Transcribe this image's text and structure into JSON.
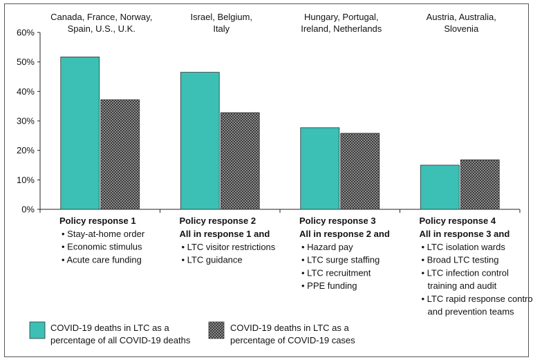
{
  "colors": {
    "series1": "#3cbfb5",
    "series2_fill": "#3a3a3a",
    "series2_dot": "#f0f0f0",
    "axis": "#222222"
  },
  "chart_data": {
    "type": "bar",
    "ylim": [
      0,
      60
    ],
    "yticks": [
      "0%",
      "10%",
      "20%",
      "30%",
      "40%",
      "50%",
      "60%"
    ],
    "grid": false,
    "categories": [
      {
        "label_lines": [
          "Canada, France, Norway,",
          "Spain, U.S., U.K."
        ]
      },
      {
        "label_lines": [
          "Israel, Belgium,",
          "Italy"
        ]
      },
      {
        "label_lines": [
          "Hungary, Portugal,",
          "Ireland, Netherlands"
        ]
      },
      {
        "label_lines": [
          "Austria, Australia,",
          "Slovenia"
        ]
      }
    ],
    "series": [
      {
        "name": "COVID-19 deaths in LTC as a percentage of all COVID-19 deaths",
        "values": [
          51.7,
          46.5,
          27.7,
          15.0
        ]
      },
      {
        "name": "COVID-19 deaths in LTC as a percentage of COVID-19 cases",
        "values": [
          37.2,
          32.8,
          25.8,
          16.8
        ]
      }
    ],
    "policies": [
      {
        "title": [
          "Policy response 1"
        ],
        "items": [
          [
            "Stay-at-home order"
          ],
          [
            "Economic stimulus"
          ],
          [
            "Acute care funding"
          ]
        ]
      },
      {
        "title": [
          "Policy response 2",
          "All in response 1 and"
        ],
        "items": [
          [
            "LTC visitor restrictions"
          ],
          [
            "LTC guidance"
          ]
        ]
      },
      {
        "title": [
          "Policy response 3",
          "All in response 2 and"
        ],
        "items": [
          [
            "Hazard pay"
          ],
          [
            "LTC surge staffing"
          ],
          [
            "LTC recruitment"
          ],
          [
            "PPE funding"
          ]
        ]
      },
      {
        "title": [
          "Policy response 4",
          "All in response 3 and"
        ],
        "items": [
          [
            "LTC isolation wards"
          ],
          [
            "Broad LTC testing"
          ],
          [
            "LTC infection control",
            "training and audit"
          ],
          [
            "LTC rapid response control",
            "and prevention teams"
          ]
        ]
      }
    ],
    "legend": [
      {
        "lines": [
          "COVID-19 deaths in LTC as a",
          "percentage of all COVID-19 deaths"
        ]
      },
      {
        "lines": [
          "COVID-19 deaths in LTC as a",
          "percentage of COVID-19 cases"
        ]
      }
    ],
    "legend_position": "bottom"
  }
}
